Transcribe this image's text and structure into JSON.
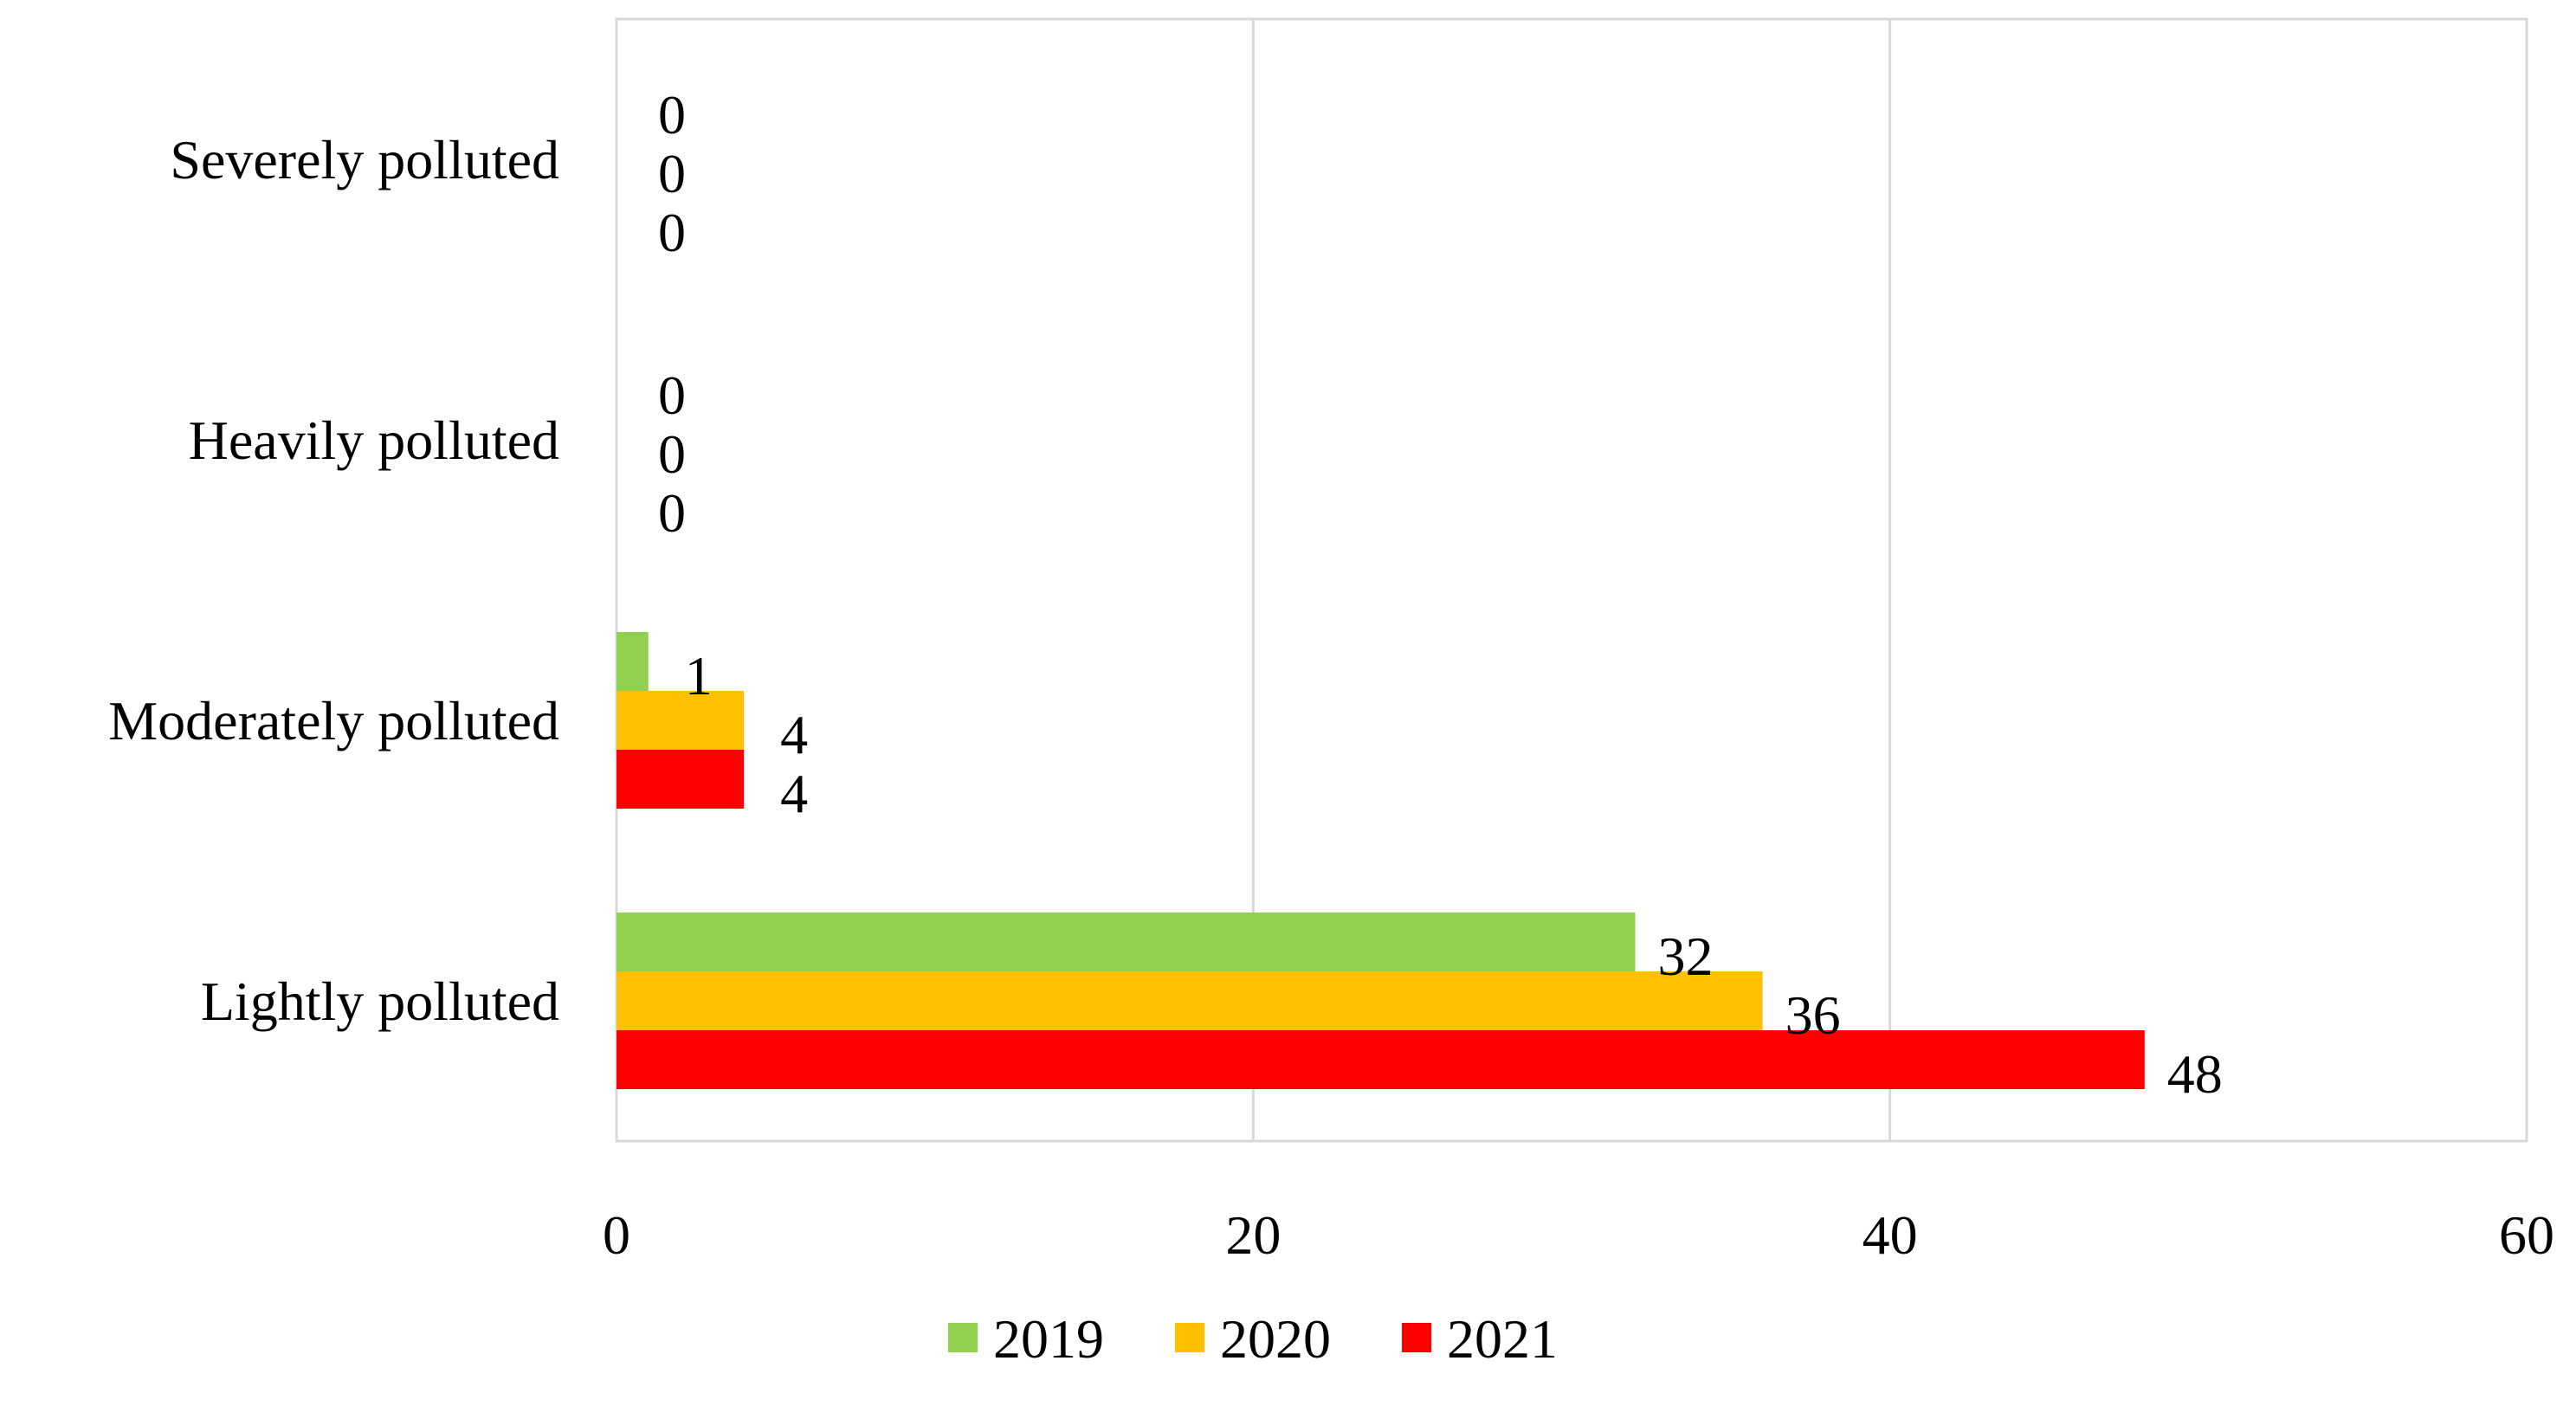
{
  "chart_data": {
    "type": "bar",
    "orientation": "horizontal",
    "categories": [
      "Lightly polluted",
      "Moderately polluted",
      "Heavily polluted",
      "Severely polluted"
    ],
    "series": [
      {
        "name": "2019",
        "color": "#92D050",
        "values": [
          32,
          1,
          0,
          0
        ]
      },
      {
        "name": "2020",
        "color": "#FFC000",
        "values": [
          36,
          4,
          0,
          0
        ]
      },
      {
        "name": "2021",
        "color": "#FF0000",
        "values": [
          48,
          4,
          0,
          0
        ]
      }
    ],
    "title": "",
    "xlabel": "",
    "ylabel": "",
    "xlim": [
      0,
      60
    ],
    "x_ticks": [
      0,
      20,
      40,
      60
    ],
    "grid": true,
    "legend_position": "bottom"
  }
}
